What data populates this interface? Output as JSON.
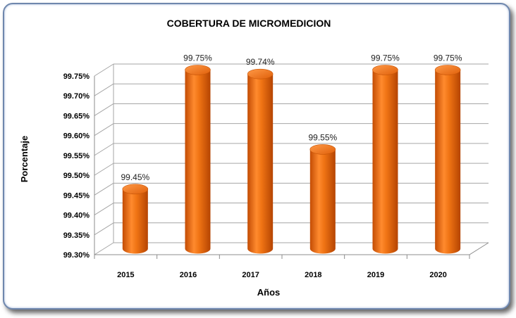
{
  "chart_data": {
    "type": "bar",
    "title": "COBERTURA DE MICROMEDICION",
    "xlabel": "Años",
    "ylabel": "Porcentaje",
    "categories": [
      "2015",
      "2016",
      "2017",
      "2018",
      "2019",
      "2020"
    ],
    "values": [
      99.45,
      99.75,
      99.74,
      99.55,
      99.75,
      99.75
    ],
    "data_labels": [
      "99.45%",
      "99.75%",
      "99.74%",
      "99.55%",
      "99.75%",
      "99.75%"
    ],
    "ylim": [
      99.3,
      99.75
    ],
    "yticks": [
      "99.30%",
      "99.35%",
      "99.40%",
      "99.45%",
      "99.50%",
      "99.55%",
      "99.60%",
      "99.65%",
      "99.70%",
      "99.75%"
    ],
    "grid": true,
    "bar_color": "#ef6c0c",
    "style": "3d-cylinder"
  }
}
